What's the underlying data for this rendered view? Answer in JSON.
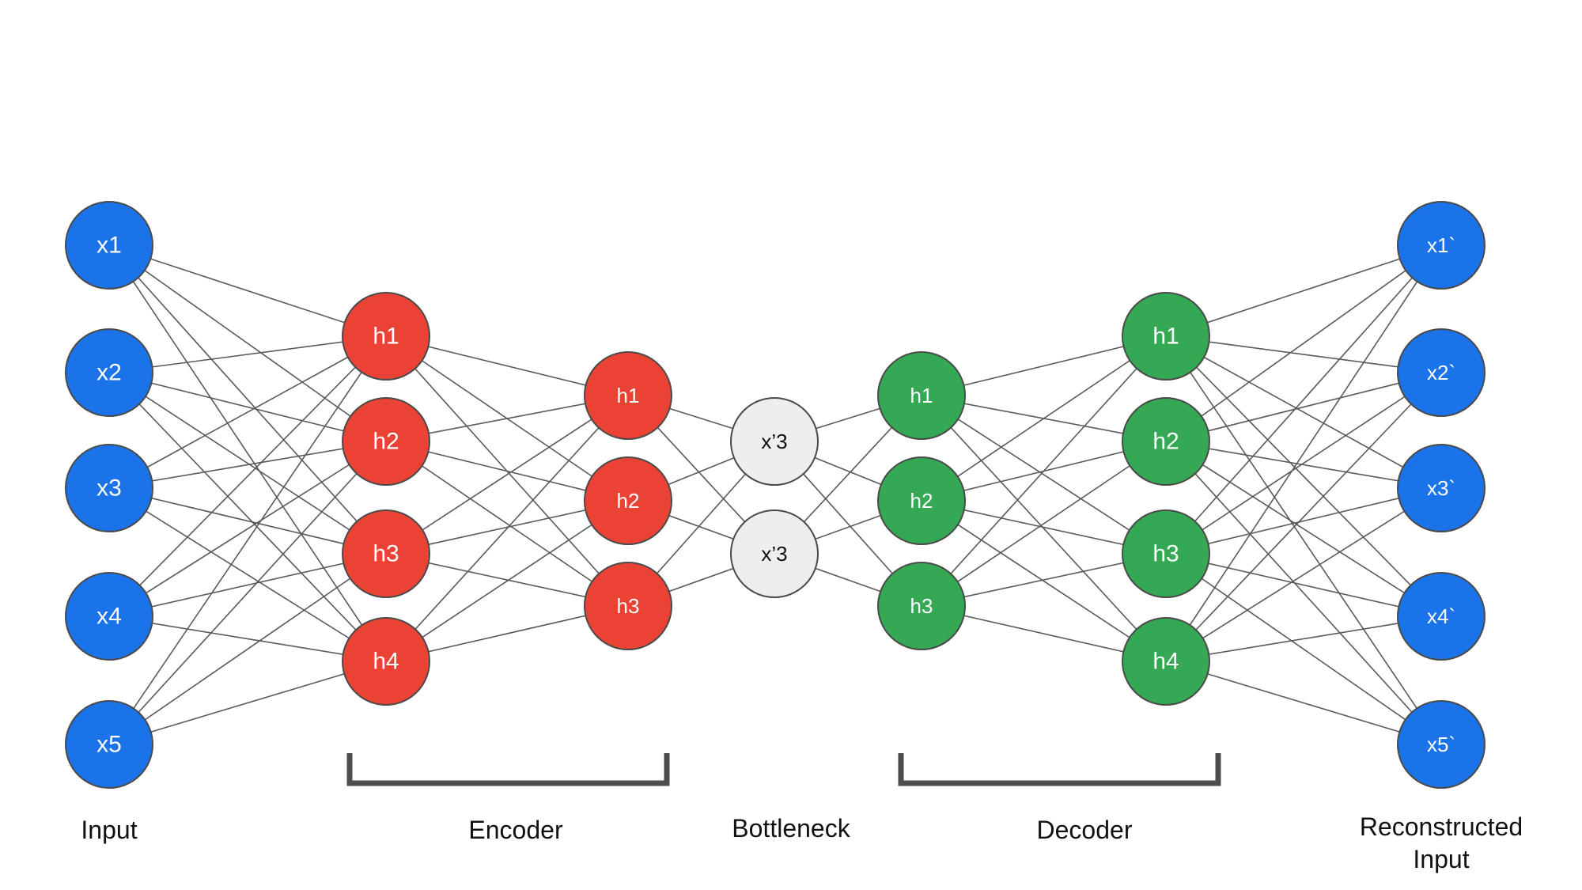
{
  "colors": {
    "input": "#1a73e8",
    "encoder": "#ea4335",
    "bottleneck": "#eeeeee",
    "decoder": "#34a853",
    "output": "#1a73e8"
  },
  "layers": [
    {
      "id": "input",
      "color_key": "input",
      "text_color": "#ffffff",
      "nodes": [
        "x1",
        "x2",
        "x3",
        "x4",
        "x5"
      ]
    },
    {
      "id": "encoder-1",
      "color_key": "encoder",
      "text_color": "#ffffff",
      "nodes": [
        "h1",
        "h2",
        "h3",
        "h4"
      ]
    },
    {
      "id": "encoder-2",
      "color_key": "encoder",
      "text_color": "#ffffff",
      "nodes": [
        "h1",
        "h2",
        "h3"
      ]
    },
    {
      "id": "bottleneck",
      "color_key": "bottleneck",
      "text_color": "#111111",
      "nodes": [
        "x’3",
        "x’3"
      ]
    },
    {
      "id": "decoder-1",
      "color_key": "decoder",
      "text_color": "#ffffff",
      "nodes": [
        "h1",
        "h2",
        "h3"
      ]
    },
    {
      "id": "decoder-2",
      "color_key": "decoder",
      "text_color": "#ffffff",
      "nodes": [
        "h1",
        "h2",
        "h3",
        "h4"
      ]
    },
    {
      "id": "output",
      "color_key": "output",
      "text_color": "#ffffff",
      "nodes": [
        "x1`",
        "x2`",
        "x3`",
        "x4`",
        "x5`"
      ]
    }
  ],
  "labels": {
    "input": "Input",
    "encoder": "Encoder",
    "bottleneck": "Bottleneck",
    "decoder": "Decoder",
    "reconstructed_line1": "Reconstructed",
    "reconstructed_line2": "Input"
  }
}
